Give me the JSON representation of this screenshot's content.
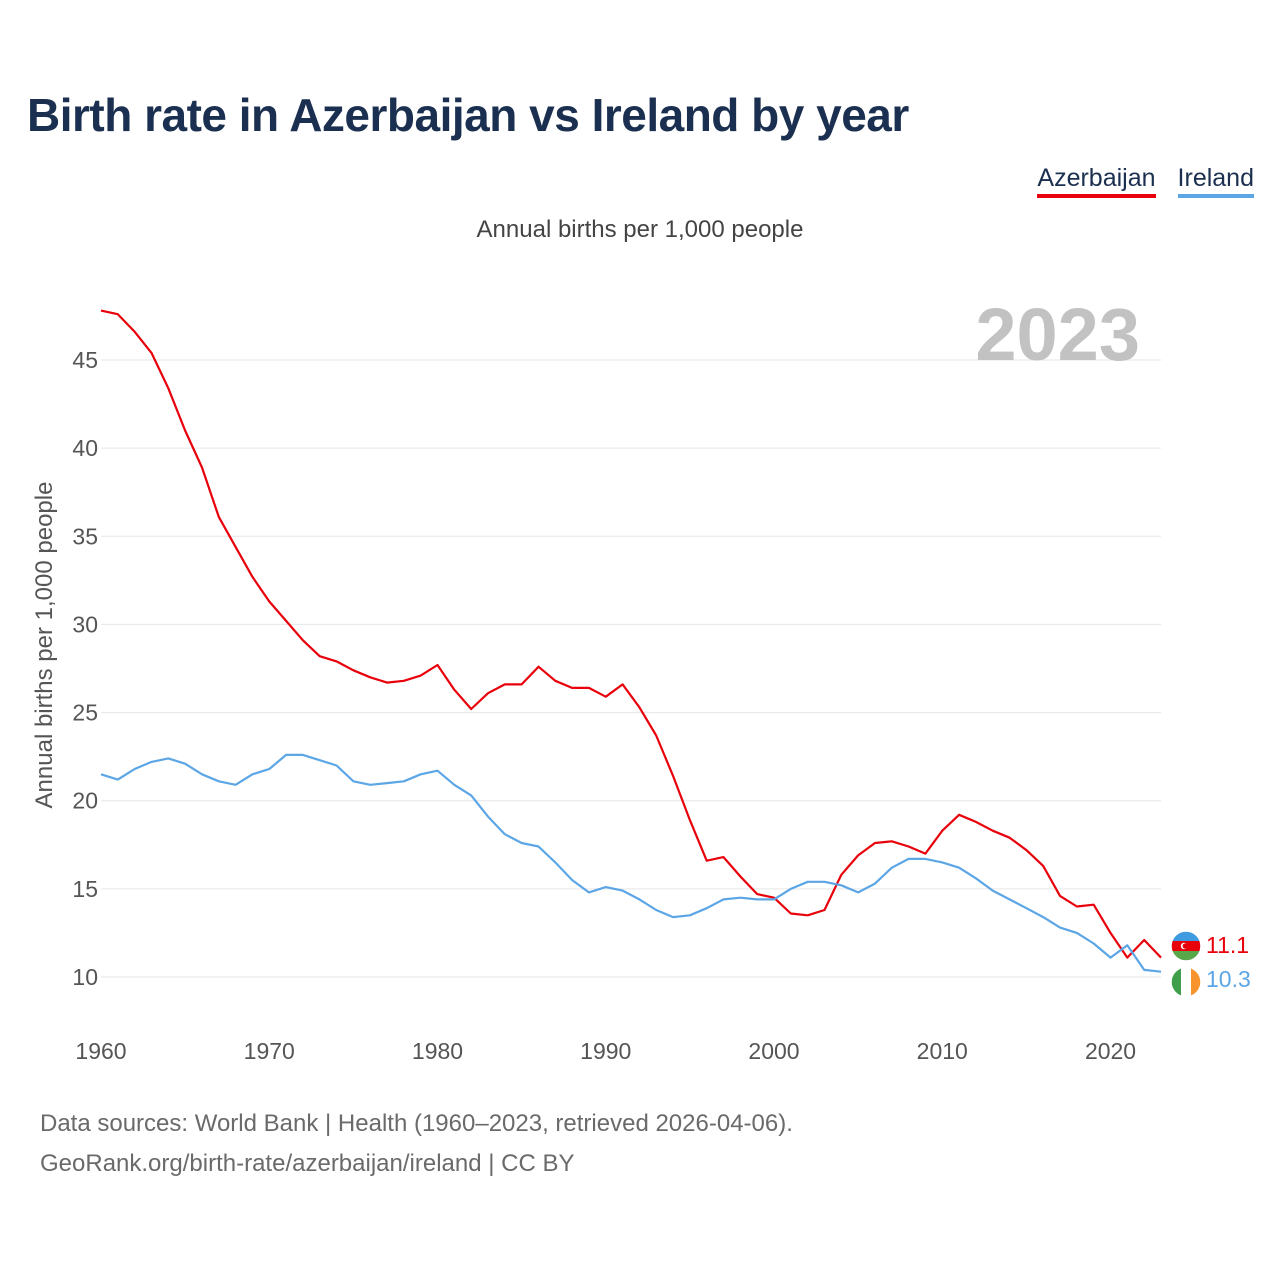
{
  "title": "Birth rate in Azerbaijan vs Ireland by year",
  "subtitle": "Annual births per 1,000 people",
  "year_watermark": "2023",
  "legend": [
    {
      "name": "Azerbaijan",
      "color": "#e8000b"
    },
    {
      "name": "Ireland",
      "color": "#5ca6e6"
    }
  ],
  "footer": {
    "line1": "Data sources: World Bank | Health (1960–2023, retrieved 2026-04-06).",
    "line2": "GeoRank.org/birth-rate/azerbaijan/ireland | CC BY"
  },
  "chart_data": {
    "type": "line",
    "title": "Birth rate in Azerbaijan vs Ireland by year",
    "ylabel": "Annual births per 1,000 people",
    "xlabel": "",
    "xlim": [
      1960,
      2023
    ],
    "ylim": [
      8,
      48
    ],
    "grid": true,
    "x_ticks": [
      "1960",
      "1970",
      "1980",
      "1990",
      "2000",
      "2010",
      "2020"
    ],
    "y_ticks": [
      "10",
      "15",
      "20",
      "25",
      "30",
      "35",
      "40",
      "45"
    ],
    "x": [
      1960,
      1961,
      1962,
      1963,
      1964,
      1965,
      1966,
      1967,
      1968,
      1969,
      1970,
      1971,
      1972,
      1973,
      1974,
      1975,
      1976,
      1977,
      1978,
      1979,
      1980,
      1981,
      1982,
      1983,
      1984,
      1985,
      1986,
      1987,
      1988,
      1989,
      1990,
      1991,
      1992,
      1993,
      1994,
      1995,
      1996,
      1997,
      1998,
      1999,
      2000,
      2001,
      2002,
      2003,
      2004,
      2005,
      2006,
      2007,
      2008,
      2009,
      2010,
      2011,
      2012,
      2013,
      2014,
      2015,
      2016,
      2017,
      2018,
      2019,
      2020,
      2021,
      2022,
      2023
    ],
    "series": [
      {
        "name": "Azerbaijan",
        "color": "#e8000b",
        "end_label": "11.1",
        "values": [
          47.8,
          47.6,
          46.6,
          45.4,
          43.4,
          41.0,
          38.9,
          36.1,
          34.4,
          32.7,
          31.3,
          30.2,
          29.1,
          28.2,
          27.9,
          27.4,
          27.0,
          26.7,
          26.8,
          27.1,
          27.7,
          26.3,
          25.2,
          26.1,
          26.6,
          26.6,
          27.6,
          26.8,
          26.4,
          26.4,
          25.9,
          26.6,
          25.3,
          23.7,
          21.4,
          18.9,
          16.6,
          16.8,
          15.7,
          14.7,
          14.5,
          13.6,
          13.5,
          13.8,
          15.8,
          16.9,
          17.6,
          17.7,
          17.4,
          17.0,
          18.3,
          19.2,
          18.8,
          18.3,
          17.9,
          17.2,
          16.3,
          14.6,
          14.0,
          14.1,
          12.5,
          11.1,
          12.1,
          11.1
        ]
      },
      {
        "name": "Ireland",
        "color": "#5ca6e6",
        "end_label": "10.3",
        "values": [
          21.5,
          21.2,
          21.8,
          22.2,
          22.4,
          22.1,
          21.5,
          21.1,
          20.9,
          21.5,
          21.8,
          22.6,
          22.6,
          22.3,
          22.0,
          21.1,
          20.9,
          21.0,
          21.1,
          21.5,
          21.7,
          20.9,
          20.3,
          19.1,
          18.1,
          17.6,
          17.4,
          16.5,
          15.5,
          14.8,
          15.1,
          14.9,
          14.4,
          13.8,
          13.4,
          13.5,
          13.9,
          14.4,
          14.5,
          14.4,
          14.4,
          15.0,
          15.4,
          15.4,
          15.2,
          14.8,
          15.3,
          16.2,
          16.7,
          16.7,
          16.5,
          16.2,
          15.6,
          14.9,
          14.4,
          13.9,
          13.4,
          12.8,
          12.5,
          11.9,
          11.1,
          11.8,
          10.4,
          10.3
        ]
      }
    ]
  }
}
